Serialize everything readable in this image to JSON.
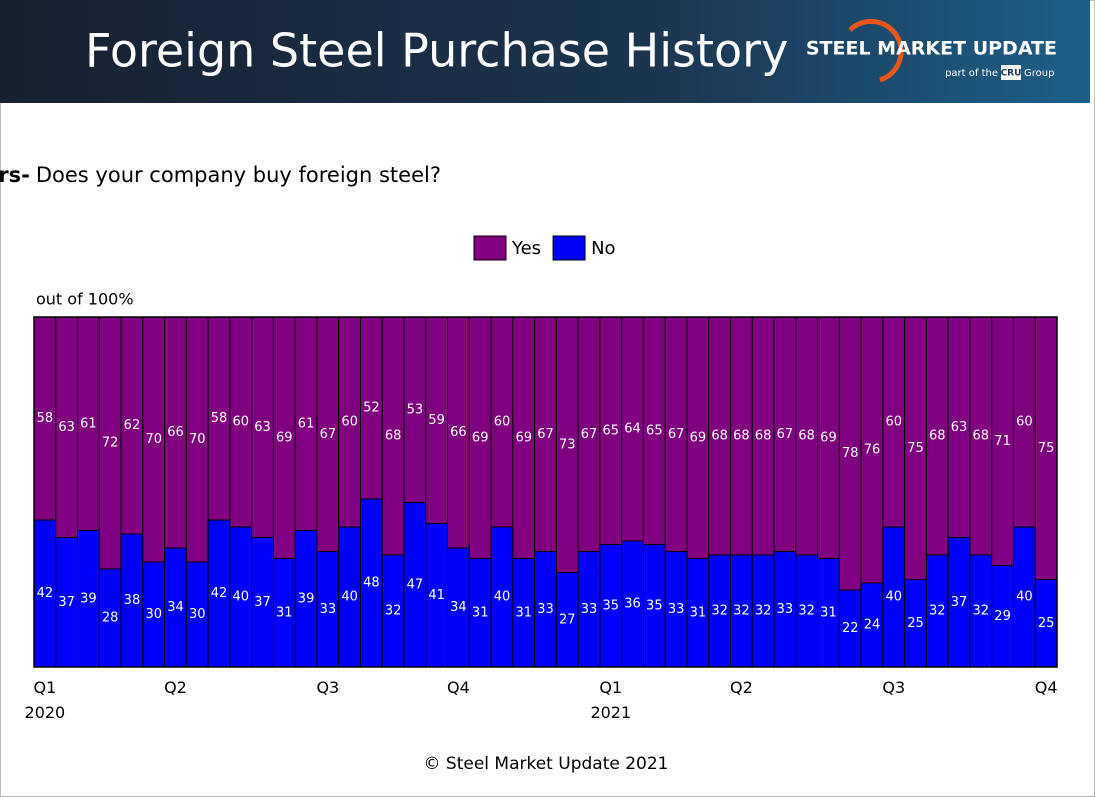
{
  "header": {
    "title": "Foreign Steel Purchase History",
    "logo_name": "STEEL MARKET UPDATE",
    "logo_tagline_prefix": "part of the",
    "logo_cru": "CRU",
    "logo_tagline_suffix": "Group"
  },
  "chart_data": {
    "type": "stacked_bar",
    "title": "Manufacturers-",
    "subtitle": "Does your company buy foreign steel?",
    "ylabel": "out of 100%",
    "categories": [
      "Q1\n2020",
      null,
      null,
      null,
      null,
      null,
      "Q2",
      null,
      null,
      null,
      null,
      null,
      null,
      "Q3",
      null,
      null,
      null,
      null,
      null,
      "Q4",
      null,
      null,
      null,
      null,
      null,
      null,
      "Q1\n2021",
      null,
      null,
      null,
      null,
      null,
      "Q2",
      null,
      null,
      null,
      null,
      null,
      null,
      "Q3",
      null,
      null,
      null,
      null,
      null,
      null,
      "Q4"
    ],
    "series": [
      {
        "name": "No",
        "color": "#0000ff",
        "values": [
          42,
          37,
          39,
          28,
          38,
          30,
          34,
          30,
          42,
          40,
          37,
          31,
          39,
          33,
          40,
          48,
          32,
          47,
          41,
          34,
          31,
          40,
          31,
          33,
          27,
          33,
          35,
          36,
          35,
          33,
          31,
          32,
          32,
          32,
          33,
          32,
          31,
          22,
          24,
          40,
          25,
          32,
          37,
          32,
          29,
          40,
          25
        ]
      },
      {
        "name": "Yes",
        "color": "#800080",
        "values": [
          58,
          63,
          61,
          72,
          62,
          70,
          66,
          70,
          58,
          60,
          63,
          69,
          61,
          67,
          60,
          52,
          68,
          53,
          59,
          66,
          69,
          60,
          69,
          67,
          73,
          67,
          65,
          64,
          65,
          67,
          69,
          68,
          68,
          68,
          67,
          68,
          69,
          78,
          76,
          60,
          75,
          68,
          63,
          68,
          71,
          60,
          75
        ]
      }
    ],
    "ylim": [
      0,
      100
    ],
    "legend": "top"
  },
  "footer": {
    "text": "© Steel Market Update 2021"
  }
}
